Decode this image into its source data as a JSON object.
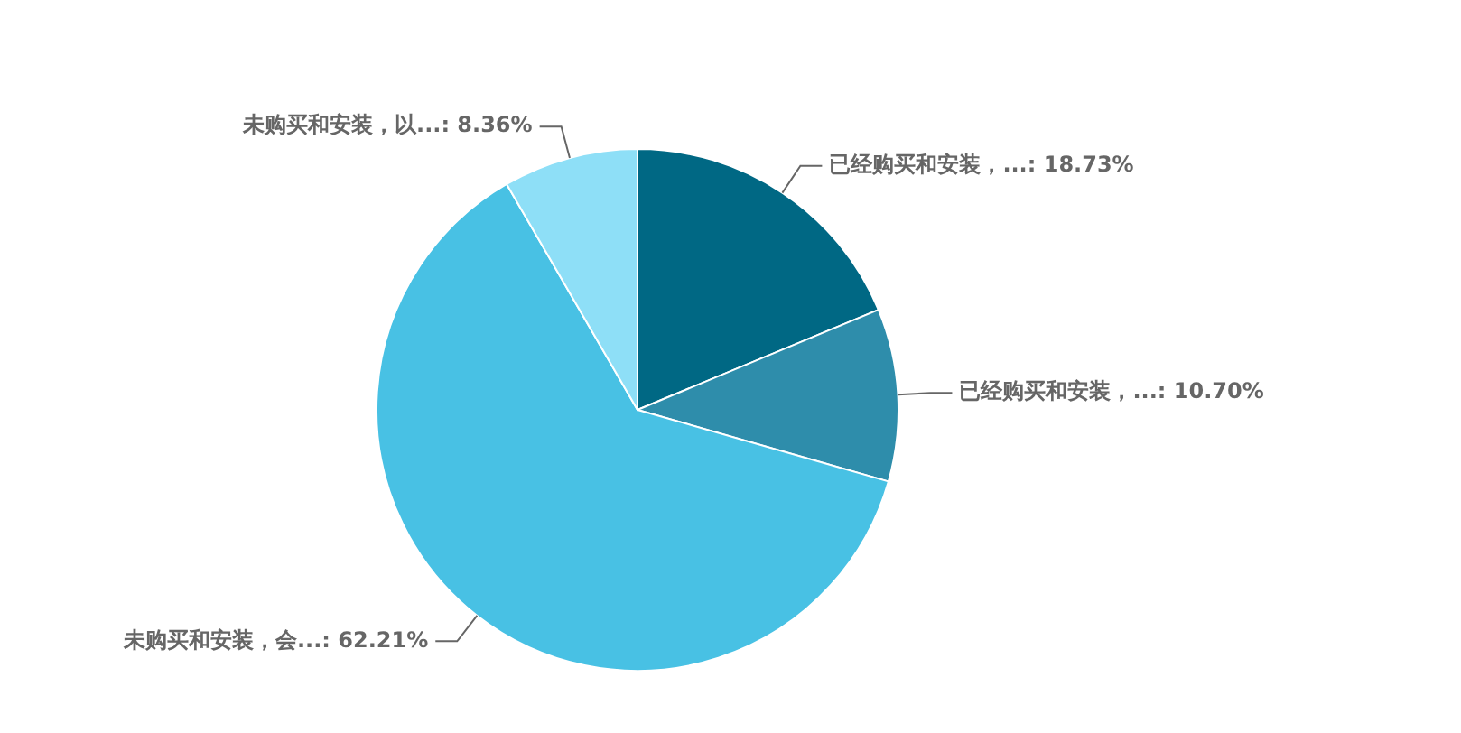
{
  "chart_data": {
    "type": "pie",
    "categories": [
      "已经购买和安装，...",
      "已经购买和安装，...",
      "未购买和安装，会...",
      "未购买和安装，以..."
    ],
    "values": [
      18.73,
      10.7,
      62.21,
      8.36
    ],
    "colors": [
      "#006884",
      "#2e8dab",
      "#48c1e4",
      "#8edff7"
    ],
    "value_labels": [
      "18.73%",
      "10.70%",
      "62.21%",
      "8.36%"
    ],
    "legend": false
  }
}
